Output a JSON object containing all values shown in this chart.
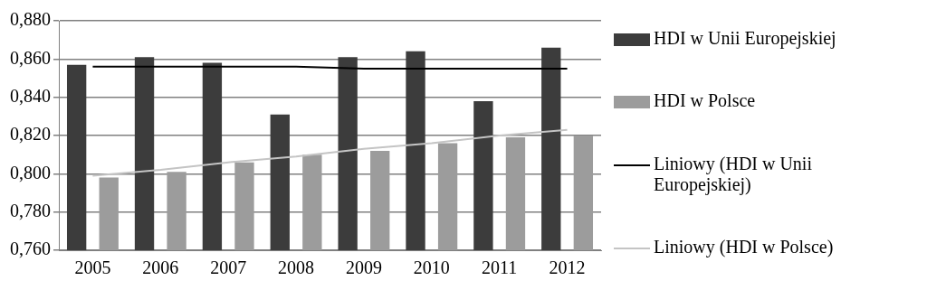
{
  "chart_data": {
    "type": "bar",
    "categories": [
      "2005",
      "2006",
      "2007",
      "2008",
      "2009",
      "2010",
      "2011",
      "2012"
    ],
    "series": [
      {
        "name": "HDI w Unii Europejskiej",
        "color": "#3c3c3c",
        "values": [
          0.857,
          0.861,
          0.858,
          0.831,
          0.861,
          0.864,
          0.838,
          0.866
        ]
      },
      {
        "name": "HDI w Polsce",
        "color": "#9c9c9c",
        "values": [
          0.798,
          0.801,
          0.806,
          0.81,
          0.812,
          0.816,
          0.819,
          0.82
        ]
      },
      {
        "name": "Liniowy (HDI w Unii Europejskiej)",
        "type": "line",
        "color": "#000000",
        "values": [
          0.856,
          0.856,
          0.856,
          0.856,
          0.855,
          0.855,
          0.855,
          0.855
        ]
      },
      {
        "name": "Liniowy (HDI w Polsce)",
        "type": "line",
        "color": "#c4c4c4",
        "values": [
          0.799,
          0.802,
          0.806,
          0.809,
          0.813,
          0.816,
          0.82,
          0.823
        ]
      }
    ],
    "ylim": [
      0.76,
      0.88
    ],
    "yticks": [
      {
        "value": 0.76,
        "label": "0,760"
      },
      {
        "value": 0.78,
        "label": "0,780"
      },
      {
        "value": 0.8,
        "label": "0,800"
      },
      {
        "value": 0.82,
        "label": "0,820"
      },
      {
        "value": 0.84,
        "label": "0,840"
      },
      {
        "value": 0.86,
        "label": "0,860"
      },
      {
        "value": 0.88,
        "label": "0,880"
      }
    ],
    "grid": "y",
    "legend": "right",
    "marker": "none"
  }
}
